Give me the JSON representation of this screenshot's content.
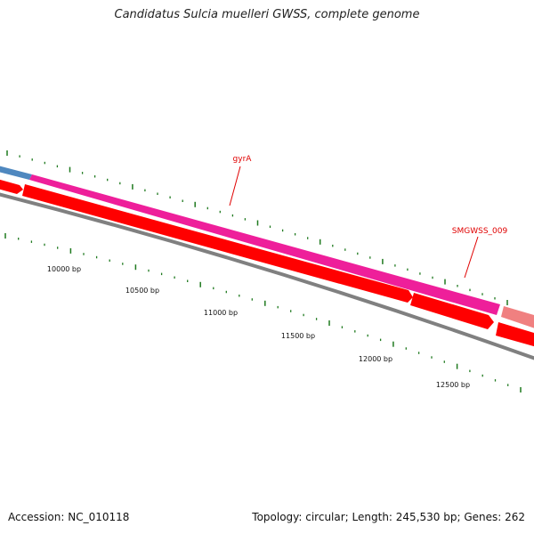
{
  "title": "Candidatus Sulcia muelleri GWSS, complete genome",
  "accession": "Accession: NC_010118",
  "summary": "Topology: circular; Length: 245,530 bp; Genes: 262",
  "colors": {
    "background": "#ffffff",
    "backbone": "#808080",
    "cds_forward": "#ff0000",
    "gene_forward": "#ee1f9a",
    "gene_forward_prev": "#4f88bf",
    "gene_forward_next": "#f08080",
    "tick_mark": "#1f7a1f",
    "gene_label": "#e00000"
  },
  "scale_labels": [
    "10000 bp",
    "10500 bp",
    "11000 bp",
    "11500 bp",
    "12000 bp",
    "12500 bp"
  ],
  "gene_labels": [
    "gyrA",
    "SMGWSS_009"
  ]
}
